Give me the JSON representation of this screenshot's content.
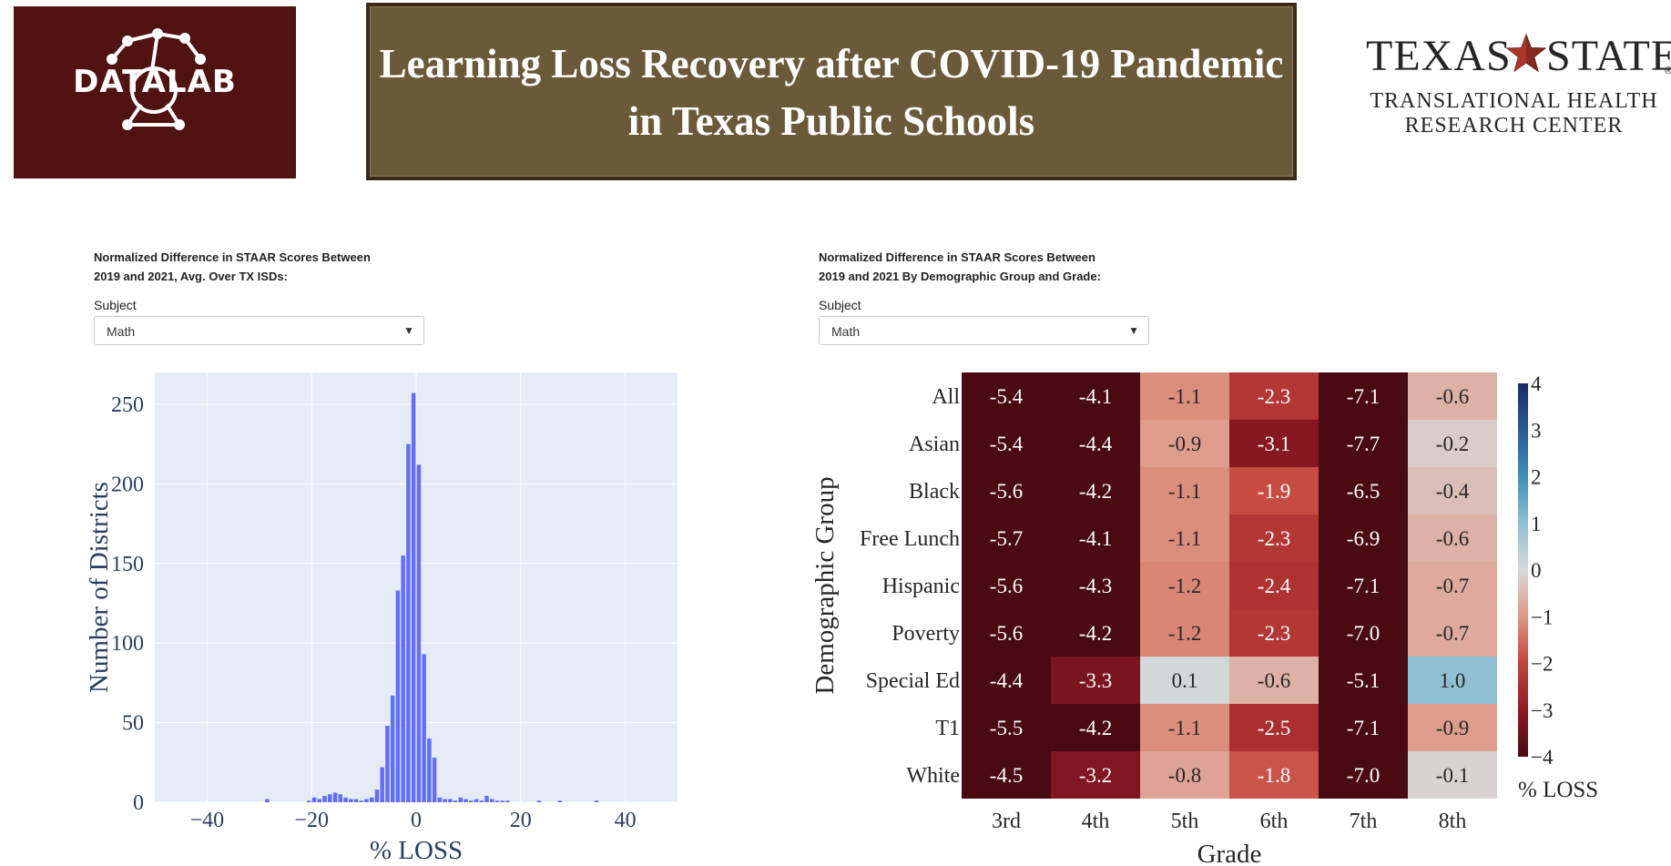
{
  "header": {
    "left_logo_text": "DATALAB",
    "title_line1": "Learning Loss Recovery after COVID-19 Pandemic",
    "title_line2": "in Texas Public Schools",
    "right_logo": {
      "word_left": "TEXAS",
      "word_right": "STATE",
      "registered": "®",
      "line1": "TRANSLATIONAL HEALTH",
      "line2": "RESEARCH CENTER"
    }
  },
  "left_panel": {
    "title_line1": "Normalized Difference in STAAR Scores Between",
    "title_line2": "2019 and 2021, Avg. Over TX ISDs:",
    "subject_label": "Subject",
    "subject_value": "Math",
    "dropdown_arrow": "▼"
  },
  "right_panel": {
    "title_line1": "Normalized Difference in STAAR Scores Between",
    "title_line2": "2019 and 2021 By Demographic Group and Grade:",
    "subject_label": "Subject",
    "subject_value": "Math",
    "dropdown_arrow": "▼"
  },
  "colors": {
    "histogram_bar": "#636efa",
    "histogram_bg": "#e5ecf6",
    "logo_left_bg": "#511212",
    "banner_bg": "#6b5a3a",
    "star": "#8a2a1f"
  },
  "chart_data": [
    {
      "type": "bar",
      "chart": "histogram",
      "xlabel": "% LOSS",
      "ylabel": "Number of Districts",
      "xlim": [
        -50,
        50
      ],
      "ylim": [
        0,
        270
      ],
      "xticks": [
        -40,
        -20,
        0,
        20,
        40
      ],
      "yticks": [
        0,
        50,
        100,
        150,
        200,
        250
      ],
      "xtick_labels": [
        "−40",
        "−20",
        "0",
        "20",
        "40"
      ],
      "ytick_labels": [
        "0",
        "50",
        "100",
        "150",
        "200",
        "250"
      ],
      "grid": true,
      "bins": [
        {
          "x": -28.5,
          "y": 2
        },
        {
          "x": -20.5,
          "y": 1
        },
        {
          "x": -19.5,
          "y": 3
        },
        {
          "x": -18.5,
          "y": 2
        },
        {
          "x": -17.5,
          "y": 4
        },
        {
          "x": -16.5,
          "y": 5
        },
        {
          "x": -15.5,
          "y": 6
        },
        {
          "x": -14.5,
          "y": 5
        },
        {
          "x": -13.5,
          "y": 3
        },
        {
          "x": -12.5,
          "y": 2
        },
        {
          "x": -11.5,
          "y": 2
        },
        {
          "x": -10.5,
          "y": 1
        },
        {
          "x": -9.5,
          "y": 2
        },
        {
          "x": -8.5,
          "y": 3
        },
        {
          "x": -7.5,
          "y": 8
        },
        {
          "x": -6.5,
          "y": 22
        },
        {
          "x": -5.5,
          "y": 48
        },
        {
          "x": -4.5,
          "y": 67
        },
        {
          "x": -3.5,
          "y": 133
        },
        {
          "x": -2.5,
          "y": 155
        },
        {
          "x": -1.5,
          "y": 225
        },
        {
          "x": -0.5,
          "y": 257
        },
        {
          "x": 0.5,
          "y": 212
        },
        {
          "x": 1.5,
          "y": 93
        },
        {
          "x": 2.5,
          "y": 40
        },
        {
          "x": 3.5,
          "y": 28
        },
        {
          "x": 4.5,
          "y": 3
        },
        {
          "x": 5.5,
          "y": 2
        },
        {
          "x": 6.5,
          "y": 2
        },
        {
          "x": 7.5,
          "y": 1
        },
        {
          "x": 8.5,
          "y": 3
        },
        {
          "x": 9.5,
          "y": 2
        },
        {
          "x": 10.5,
          "y": 1
        },
        {
          "x": 11.5,
          "y": 2
        },
        {
          "x": 12.5,
          "y": 1
        },
        {
          "x": 13.5,
          "y": 4
        },
        {
          "x": 14.5,
          "y": 2
        },
        {
          "x": 15.5,
          "y": 1
        },
        {
          "x": 16.5,
          "y": 1
        },
        {
          "x": 17.5,
          "y": 1
        },
        {
          "x": 23.5,
          "y": 1
        },
        {
          "x": 27.5,
          "y": 1
        },
        {
          "x": 34.5,
          "y": 1
        }
      ]
    },
    {
      "type": "heatmap",
      "xlabel": "Grade",
      "ylabel": "Demographic Group",
      "x": [
        "3rd",
        "4th",
        "5th",
        "6th",
        "7th",
        "8th"
      ],
      "y": [
        "All",
        "Asian",
        "Black",
        "Free Lunch",
        "Hispanic",
        "Poverty",
        "Special Ed",
        "T1",
        "White"
      ],
      "values": [
        [
          -5.4,
          -4.1,
          -1.1,
          -2.3,
          -7.1,
          -0.6
        ],
        [
          -5.4,
          -4.4,
          -0.9,
          -3.1,
          -7.7,
          -0.2
        ],
        [
          -5.6,
          -4.2,
          -1.1,
          -1.9,
          -6.5,
          -0.4
        ],
        [
          -5.7,
          -4.1,
          -1.1,
          -2.3,
          -6.9,
          -0.6
        ],
        [
          -5.6,
          -4.3,
          -1.2,
          -2.4,
          -7.1,
          -0.7
        ],
        [
          -5.6,
          -4.2,
          -1.2,
          -2.3,
          -7.0,
          -0.7
        ],
        [
          -4.4,
          -3.3,
          0.1,
          -0.6,
          -5.1,
          1.0
        ],
        [
          -5.5,
          -4.2,
          -1.1,
          -2.5,
          -7.1,
          -0.9
        ],
        [
          -4.5,
          -3.2,
          -0.8,
          -1.8,
          -7.0,
          -0.1
        ]
      ],
      "labels": [
        [
          "-5.4",
          "-4.1",
          "-1.1",
          "-2.3",
          "-7.1",
          "-0.6"
        ],
        [
          "-5.4",
          "-4.4",
          "-0.9",
          "-3.1",
          "-7.7",
          "-0.2"
        ],
        [
          "-5.6",
          "-4.2",
          "-1.1",
          "-1.9",
          "-6.5",
          "-0.4"
        ],
        [
          "-5.7",
          "-4.1",
          "-1.1",
          "-2.3",
          "-6.9",
          "-0.6"
        ],
        [
          "-5.6",
          "-4.3",
          "-1.2",
          "-2.4",
          "-7.1",
          "-0.7"
        ],
        [
          "-5.6",
          "-4.2",
          "-1.2",
          "-2.3",
          "-7.0",
          "-0.7"
        ],
        [
          "-4.4",
          "-3.3",
          "0.1",
          "-0.6",
          "-5.1",
          "1.0"
        ],
        [
          "-5.5",
          "-4.2",
          "-1.1",
          "-2.5",
          "-7.1",
          "-0.9"
        ],
        [
          "-4.5",
          "-3.2",
          "-0.8",
          "-1.8",
          "-7.0",
          "-0.1"
        ]
      ],
      "color_range": [
        -4,
        4
      ],
      "colorbar_title": "% LOSS",
      "colorbar_ticks": [
        4,
        3,
        2,
        1,
        0,
        -1,
        -2,
        -3,
        -4
      ],
      "colorbar_tick_labels": [
        "4",
        "3",
        "2",
        "1",
        "0",
        "−1",
        "−2",
        "−3",
        "−4"
      ],
      "colorscale": [
        [
          -4,
          "#4a0a12"
        ],
        [
          -3,
          "#8e1a24"
        ],
        [
          -2,
          "#c3443c"
        ],
        [
          -1,
          "#df9683"
        ],
        [
          0,
          "#d9d9d9"
        ],
        [
          1,
          "#8fc0d3"
        ],
        [
          2,
          "#3b8fb8"
        ],
        [
          3,
          "#2a5a9a"
        ],
        [
          4,
          "#1b2a68"
        ]
      ]
    }
  ]
}
